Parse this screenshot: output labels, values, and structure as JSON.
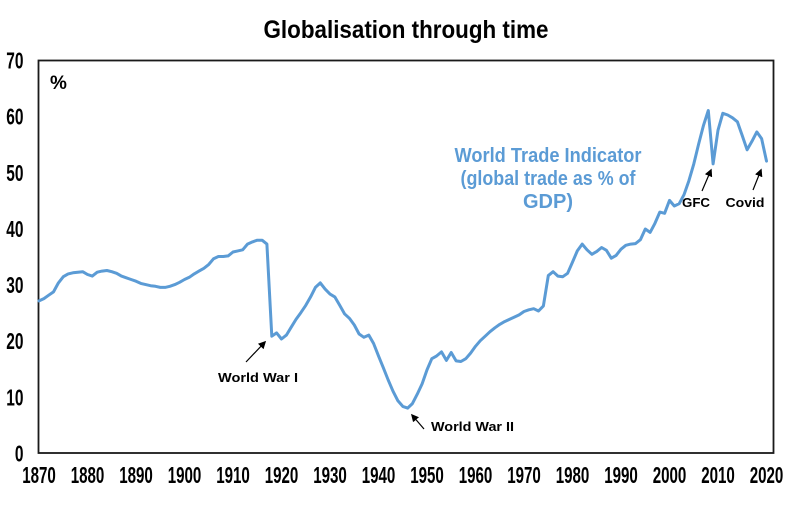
{
  "page": {
    "title": "Globalisation through time"
  },
  "chart_data": {
    "type": "line",
    "title": "Globalisation through time",
    "unit_label": "%",
    "series_name": "World Trade Indicator",
    "legend_lines": [
      "World Trade Indicator",
      "(global trade as % of",
      "GDP)"
    ],
    "legend_position": "inside upper-right area",
    "xlabel": "",
    "ylabel": "%",
    "xlim": [
      1870,
      2020
    ],
    "ylim": [
      0,
      70
    ],
    "grid": false,
    "x_ticks": [
      1870,
      1880,
      1890,
      1900,
      1910,
      1920,
      1930,
      1940,
      1950,
      1960,
      1970,
      1980,
      1990,
      2000,
      2010,
      2020
    ],
    "y_ticks": [
      0,
      10,
      20,
      30,
      40,
      50,
      60,
      70
    ],
    "line_color": "#5B9BD5",
    "legend_color": "#5B9BD5",
    "start_year": 1870,
    "values": [
      27.1,
      27.5,
      28.1,
      28.7,
      30.3,
      31.4,
      31.9,
      32.1,
      32.2,
      32.3,
      31.8,
      31.5,
      32.2,
      32.4,
      32.5,
      32.3,
      32.0,
      31.5,
      31.2,
      30.9,
      30.6,
      30.2,
      30.0,
      29.8,
      29.7,
      29.5,
      29.5,
      29.7,
      30.0,
      30.4,
      30.9,
      31.3,
      31.9,
      32.4,
      32.9,
      33.6,
      34.6,
      35.0,
      35.0,
      35.1,
      35.8,
      36.0,
      36.2,
      37.2,
      37.6,
      37.9,
      37.9,
      37.2,
      20.8,
      21.4,
      20.3,
      21.0,
      22.4,
      23.8,
      25.0,
      26.3,
      27.8,
      29.5,
      30.3,
      29.2,
      28.3,
      27.8,
      26.3,
      24.8,
      24.0,
      22.8,
      21.2,
      20.6,
      21.0,
      19.5,
      17.3,
      15.2,
      13.0,
      11.0,
      9.3,
      8.3,
      8.0,
      8.8,
      10.5,
      12.3,
      14.8,
      16.8,
      17.3,
      18.0,
      16.5,
      17.9,
      16.4,
      16.3,
      16.8,
      17.8,
      19.0,
      20.0,
      20.8,
      21.6,
      22.3,
      22.9,
      23.4,
      23.8,
      24.2,
      24.6,
      25.2,
      25.5,
      25.7,
      25.3,
      26.2,
      31.6,
      32.3,
      31.5,
      31.4,
      32.0,
      34.0,
      36.0,
      37.2,
      36.2,
      35.4,
      35.9,
      36.6,
      36.1,
      34.7,
      35.2,
      36.3,
      37.0,
      37.2,
      37.3,
      38.0,
      39.9,
      39.3,
      40.9,
      42.9,
      42.7,
      45.0,
      44.0,
      44.4,
      46.0,
      48.5,
      51.5,
      55.0,
      58.3,
      61.0,
      51.5,
      57.5,
      60.5,
      60.2,
      59.7,
      59.0,
      56.5,
      54.0,
      55.5,
      57.2,
      56.0,
      52.0
    ],
    "annotations": [
      {
        "label": "World War I",
        "target_year": 1918,
        "target_value": 20.8
      },
      {
        "label": "World War II",
        "target_year": 1946,
        "target_value": 8.0
      },
      {
        "label": "GFC",
        "target_year": 2009,
        "target_value": 51.5
      },
      {
        "label": "Covid",
        "target_year": 2020,
        "target_value": 52.0
      }
    ]
  }
}
